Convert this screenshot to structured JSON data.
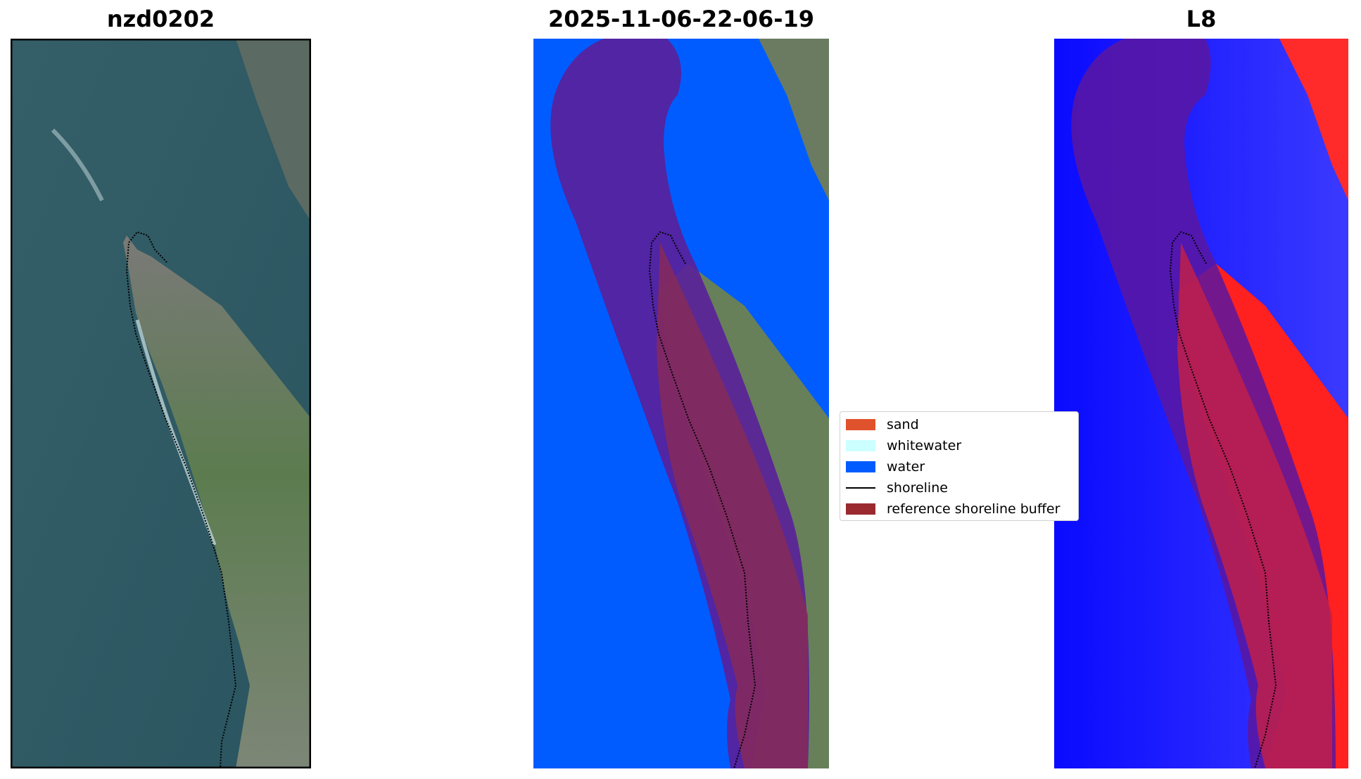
{
  "panels": [
    {
      "title": "nzd0202"
    },
    {
      "title": "2025-11-06-22-06-19"
    },
    {
      "title": "L8"
    }
  ],
  "legend": {
    "items": [
      {
        "label": "sand",
        "color": "#e0522b",
        "kind": "patch"
      },
      {
        "label": "whitewater",
        "color": "#ccffff",
        "kind": "patch"
      },
      {
        "label": "water",
        "color": "#005cff",
        "kind": "patch"
      },
      {
        "label": "shoreline",
        "color": "#000000",
        "kind": "line"
      },
      {
        "label": "reference shoreline buffer",
        "color": "#9a2a30",
        "kind": "patch"
      }
    ]
  },
  "colors": {
    "sea": "#2f5a63",
    "land": "#5f7d55",
    "buffer_overlay": "#800060",
    "index_water": "#1010ff",
    "index_land": "#ff2020"
  }
}
